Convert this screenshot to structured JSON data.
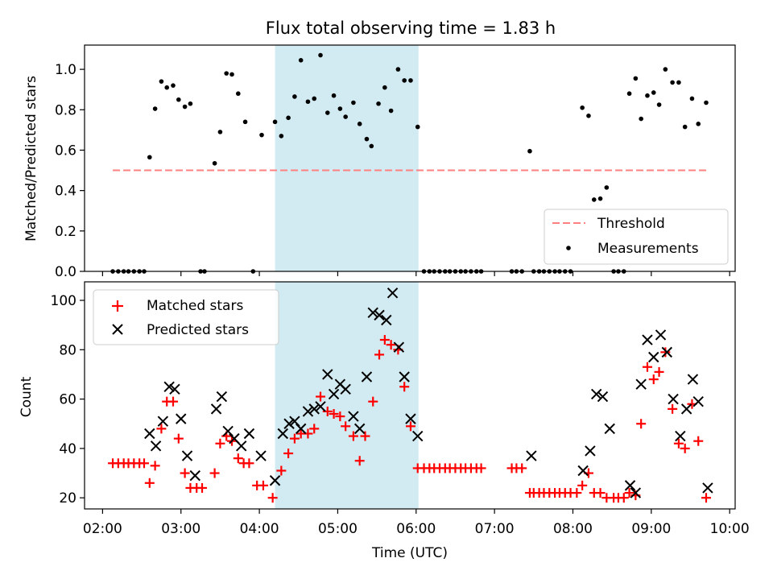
{
  "figure": {
    "title": "Flux total observing time = 1.83 h"
  },
  "chart_data": [
    {
      "type": "scatter",
      "panel": "top",
      "title": "Flux total observing time = 1.83 h",
      "ylabel": "Matched/Predicted stars",
      "xlabel": "",
      "ylim": [
        0,
        1.12
      ],
      "yticks": [
        0.0,
        0.2,
        0.4,
        0.6,
        0.8,
        1.0
      ],
      "ytick_labels": [
        "0.0",
        "0.2",
        "0.4",
        "0.6",
        "0.8",
        "1.0"
      ],
      "shaded_span": {
        "from": 4.2,
        "to": 6.03,
        "color": "#add8e6"
      },
      "threshold": {
        "name": "Threshold",
        "y": 0.5,
        "x_from": 2.13,
        "x_to": 9.7,
        "color": "#ff8080"
      },
      "legend": {
        "position": "lower right",
        "entries": [
          "Threshold",
          "Measurements"
        ]
      },
      "series": [
        {
          "name": "Measurements",
          "color": "#000000",
          "points": [
            [
              2.13,
              0
            ],
            [
              2.2,
              0
            ],
            [
              2.27,
              0
            ],
            [
              2.33,
              0
            ],
            [
              2.4,
              0
            ],
            [
              2.47,
              0
            ],
            [
              2.53,
              0
            ],
            [
              2.6,
              0.565
            ],
            [
              2.67,
              0.805
            ],
            [
              2.75,
              0.94
            ],
            [
              2.82,
              0.91
            ],
            [
              2.9,
              0.92
            ],
            [
              2.97,
              0.85
            ],
            [
              3.05,
              0.815
            ],
            [
              3.12,
              0.83
            ],
            [
              3.25,
              0
            ],
            [
              3.3,
              0
            ],
            [
              3.43,
              0.535
            ],
            [
              3.5,
              0.69
            ],
            [
              3.58,
              0.98
            ],
            [
              3.65,
              0.975
            ],
            [
              3.73,
              0.88
            ],
            [
              3.82,
              0.74
            ],
            [
              3.92,
              0
            ],
            [
              4.03,
              0.675
            ],
            [
              4.2,
              0.74
            ],
            [
              4.28,
              0.67
            ],
            [
              4.37,
              0.76
            ],
            [
              4.45,
              0.865
            ],
            [
              4.53,
              1.045
            ],
            [
              4.62,
              0.84
            ],
            [
              4.7,
              0.855
            ],
            [
              4.78,
              1.07
            ],
            [
              4.87,
              0.785
            ],
            [
              4.95,
              0.87
            ],
            [
              5.03,
              0.805
            ],
            [
              5.1,
              0.765
            ],
            [
              5.2,
              0.835
            ],
            [
              5.28,
              0.73
            ],
            [
              5.37,
              0.655
            ],
            [
              5.43,
              0.62
            ],
            [
              5.52,
              0.83
            ],
            [
              5.6,
              0.91
            ],
            [
              5.68,
              0.795
            ],
            [
              5.77,
              1.0
            ],
            [
              5.85,
              0.945
            ],
            [
              5.93,
              0.945
            ],
            [
              6.02,
              0.715
            ],
            [
              6.1,
              0
            ],
            [
              6.17,
              0
            ],
            [
              6.23,
              0
            ],
            [
              6.3,
              0
            ],
            [
              6.37,
              0
            ],
            [
              6.43,
              0
            ],
            [
              6.5,
              0
            ],
            [
              6.57,
              0
            ],
            [
              6.63,
              0
            ],
            [
              6.7,
              0
            ],
            [
              6.77,
              0
            ],
            [
              6.83,
              0
            ],
            [
              7.22,
              0
            ],
            [
              7.28,
              0
            ],
            [
              7.35,
              0
            ],
            [
              7.45,
              0.595
            ],
            [
              7.5,
              0
            ],
            [
              7.57,
              0
            ],
            [
              7.63,
              0
            ],
            [
              7.7,
              0
            ],
            [
              7.77,
              0
            ],
            [
              7.83,
              0
            ],
            [
              7.9,
              0
            ],
            [
              7.97,
              0
            ],
            [
              8.12,
              0.81
            ],
            [
              8.2,
              0.77
            ],
            [
              8.27,
              0.355
            ],
            [
              8.35,
              0.36
            ],
            [
              8.43,
              0.415
            ],
            [
              8.52,
              0
            ],
            [
              8.58,
              0
            ],
            [
              8.65,
              0
            ],
            [
              8.72,
              0.88
            ],
            [
              8.8,
              0.955
            ],
            [
              8.87,
              0.755
            ],
            [
              8.95,
              0.87
            ],
            [
              9.03,
              0.885
            ],
            [
              9.1,
              0.825
            ],
            [
              9.18,
              1.0
            ],
            [
              9.27,
              0.935
            ],
            [
              9.35,
              0.935
            ],
            [
              9.43,
              0.715
            ],
            [
              9.52,
              0.855
            ],
            [
              9.6,
              0.73
            ],
            [
              9.7,
              0.835
            ]
          ]
        }
      ]
    },
    {
      "type": "scatter",
      "panel": "bottom",
      "ylabel": "Count",
      "xlabel": "Time (UTC)",
      "xlim": [
        1.77,
        10.07
      ],
      "ylim": [
        15.5,
        107.5
      ],
      "yticks": [
        20,
        40,
        60,
        80,
        100
      ],
      "ytick_labels": [
        "20",
        "40",
        "60",
        "80",
        "100"
      ],
      "xticks": [
        2,
        3,
        4,
        5,
        6,
        7,
        8,
        9,
        10
      ],
      "xtick_labels": [
        "02:00",
        "03:00",
        "04:00",
        "05:00",
        "06:00",
        "07:00",
        "08:00",
        "09:00",
        "10:00"
      ],
      "shaded_span": {
        "from": 4.2,
        "to": 6.03,
        "color": "#add8e6"
      },
      "legend": {
        "position": "upper left",
        "entries": [
          "Matched stars",
          "Predicted stars"
        ]
      },
      "series": [
        {
          "name": "Matched stars",
          "marker": "plus",
          "color": "#ff0000",
          "points": [
            [
              2.13,
              34
            ],
            [
              2.2,
              34
            ],
            [
              2.27,
              34
            ],
            [
              2.33,
              34
            ],
            [
              2.4,
              34
            ],
            [
              2.47,
              34
            ],
            [
              2.53,
              34
            ],
            [
              2.6,
              26
            ],
            [
              2.67,
              33
            ],
            [
              2.75,
              48
            ],
            [
              2.82,
              59
            ],
            [
              2.9,
              59
            ],
            [
              2.97,
              44
            ],
            [
              3.05,
              30
            ],
            [
              3.12,
              24
            ],
            [
              3.2,
              24
            ],
            [
              3.27,
              24
            ],
            [
              3.43,
              30
            ],
            [
              3.5,
              42
            ],
            [
              3.58,
              45
            ],
            [
              3.65,
              43
            ],
            [
              3.73,
              36
            ],
            [
              3.8,
              34
            ],
            [
              3.87,
              34
            ],
            [
              3.97,
              25
            ],
            [
              4.05,
              25
            ],
            [
              4.17,
              20
            ],
            [
              4.28,
              31
            ],
            [
              4.37,
              38
            ],
            [
              4.45,
              44
            ],
            [
              4.53,
              46
            ],
            [
              4.62,
              46
            ],
            [
              4.7,
              48
            ],
            [
              4.78,
              61
            ],
            [
              4.87,
              55
            ],
            [
              4.95,
              54
            ],
            [
              5.03,
              53
            ],
            [
              5.1,
              49
            ],
            [
              5.2,
              45
            ],
            [
              5.28,
              35
            ],
            [
              5.35,
              45
            ],
            [
              5.45,
              59
            ],
            [
              5.53,
              78
            ],
            [
              5.6,
              84
            ],
            [
              5.68,
              82
            ],
            [
              5.77,
              80
            ],
            [
              5.85,
              65
            ],
            [
              5.93,
              49
            ],
            [
              6.02,
              32
            ],
            [
              6.1,
              32
            ],
            [
              6.17,
              32
            ],
            [
              6.23,
              32
            ],
            [
              6.3,
              32
            ],
            [
              6.37,
              32
            ],
            [
              6.43,
              32
            ],
            [
              6.5,
              32
            ],
            [
              6.57,
              32
            ],
            [
              6.63,
              32
            ],
            [
              6.7,
              32
            ],
            [
              6.77,
              32
            ],
            [
              6.83,
              32
            ],
            [
              7.22,
              32
            ],
            [
              7.28,
              32
            ],
            [
              7.35,
              32
            ],
            [
              7.45,
              22
            ],
            [
              7.5,
              22
            ],
            [
              7.57,
              22
            ],
            [
              7.63,
              22
            ],
            [
              7.7,
              22
            ],
            [
              7.77,
              22
            ],
            [
              7.83,
              22
            ],
            [
              7.9,
              22
            ],
            [
              7.97,
              22
            ],
            [
              8.05,
              22
            ],
            [
              8.12,
              25
            ],
            [
              8.2,
              30
            ],
            [
              8.27,
              22
            ],
            [
              8.35,
              22
            ],
            [
              8.43,
              20
            ],
            [
              8.52,
              20
            ],
            [
              8.58,
              20
            ],
            [
              8.65,
              20
            ],
            [
              8.72,
              22
            ],
            [
              8.8,
              21
            ],
            [
              8.87,
              50
            ],
            [
              8.95,
              73
            ],
            [
              9.03,
              68
            ],
            [
              9.1,
              71
            ],
            [
              9.18,
              79
            ],
            [
              9.27,
              56
            ],
            [
              9.35,
              42
            ],
            [
              9.43,
              40
            ],
            [
              9.52,
              58
            ],
            [
              9.6,
              43
            ],
            [
              9.7,
              20
            ]
          ]
        },
        {
          "name": "Predicted stars",
          "marker": "x",
          "color": "#000000",
          "points": [
            [
              2.6,
              46
            ],
            [
              2.68,
              41
            ],
            [
              2.77,
              51
            ],
            [
              2.85,
              65
            ],
            [
              2.92,
              64
            ],
            [
              3.0,
              52
            ],
            [
              3.08,
              37
            ],
            [
              3.18,
              29
            ],
            [
              3.45,
              56
            ],
            [
              3.52,
              61
            ],
            [
              3.6,
              47
            ],
            [
              3.68,
              44
            ],
            [
              3.77,
              41
            ],
            [
              3.87,
              46
            ],
            [
              4.02,
              37
            ],
            [
              4.2,
              27
            ],
            [
              4.3,
              46
            ],
            [
              4.38,
              50
            ],
            [
              4.45,
              51
            ],
            [
              4.53,
              48
            ],
            [
              4.62,
              55
            ],
            [
              4.7,
              56
            ],
            [
              4.78,
              57
            ],
            [
              4.87,
              70
            ],
            [
              4.95,
              62
            ],
            [
              5.03,
              66
            ],
            [
              5.1,
              64
            ],
            [
              5.2,
              53
            ],
            [
              5.28,
              48
            ],
            [
              5.37,
              69
            ],
            [
              5.45,
              95
            ],
            [
              5.53,
              94
            ],
            [
              5.62,
              92
            ],
            [
              5.7,
              103
            ],
            [
              5.78,
              81
            ],
            [
              5.85,
              69
            ],
            [
              5.93,
              52
            ],
            [
              6.02,
              45
            ],
            [
              7.47,
              37
            ],
            [
              8.13,
              31
            ],
            [
              8.22,
              39
            ],
            [
              8.3,
              62
            ],
            [
              8.38,
              61
            ],
            [
              8.47,
              48
            ],
            [
              8.73,
              25
            ],
            [
              8.8,
              22
            ],
            [
              8.87,
              66
            ],
            [
              8.95,
              84
            ],
            [
              9.03,
              77
            ],
            [
              9.12,
              86
            ],
            [
              9.2,
              79
            ],
            [
              9.28,
              60
            ],
            [
              9.37,
              45
            ],
            [
              9.45,
              56
            ],
            [
              9.53,
              68
            ],
            [
              9.6,
              59
            ],
            [
              9.72,
              24
            ]
          ]
        }
      ]
    }
  ]
}
